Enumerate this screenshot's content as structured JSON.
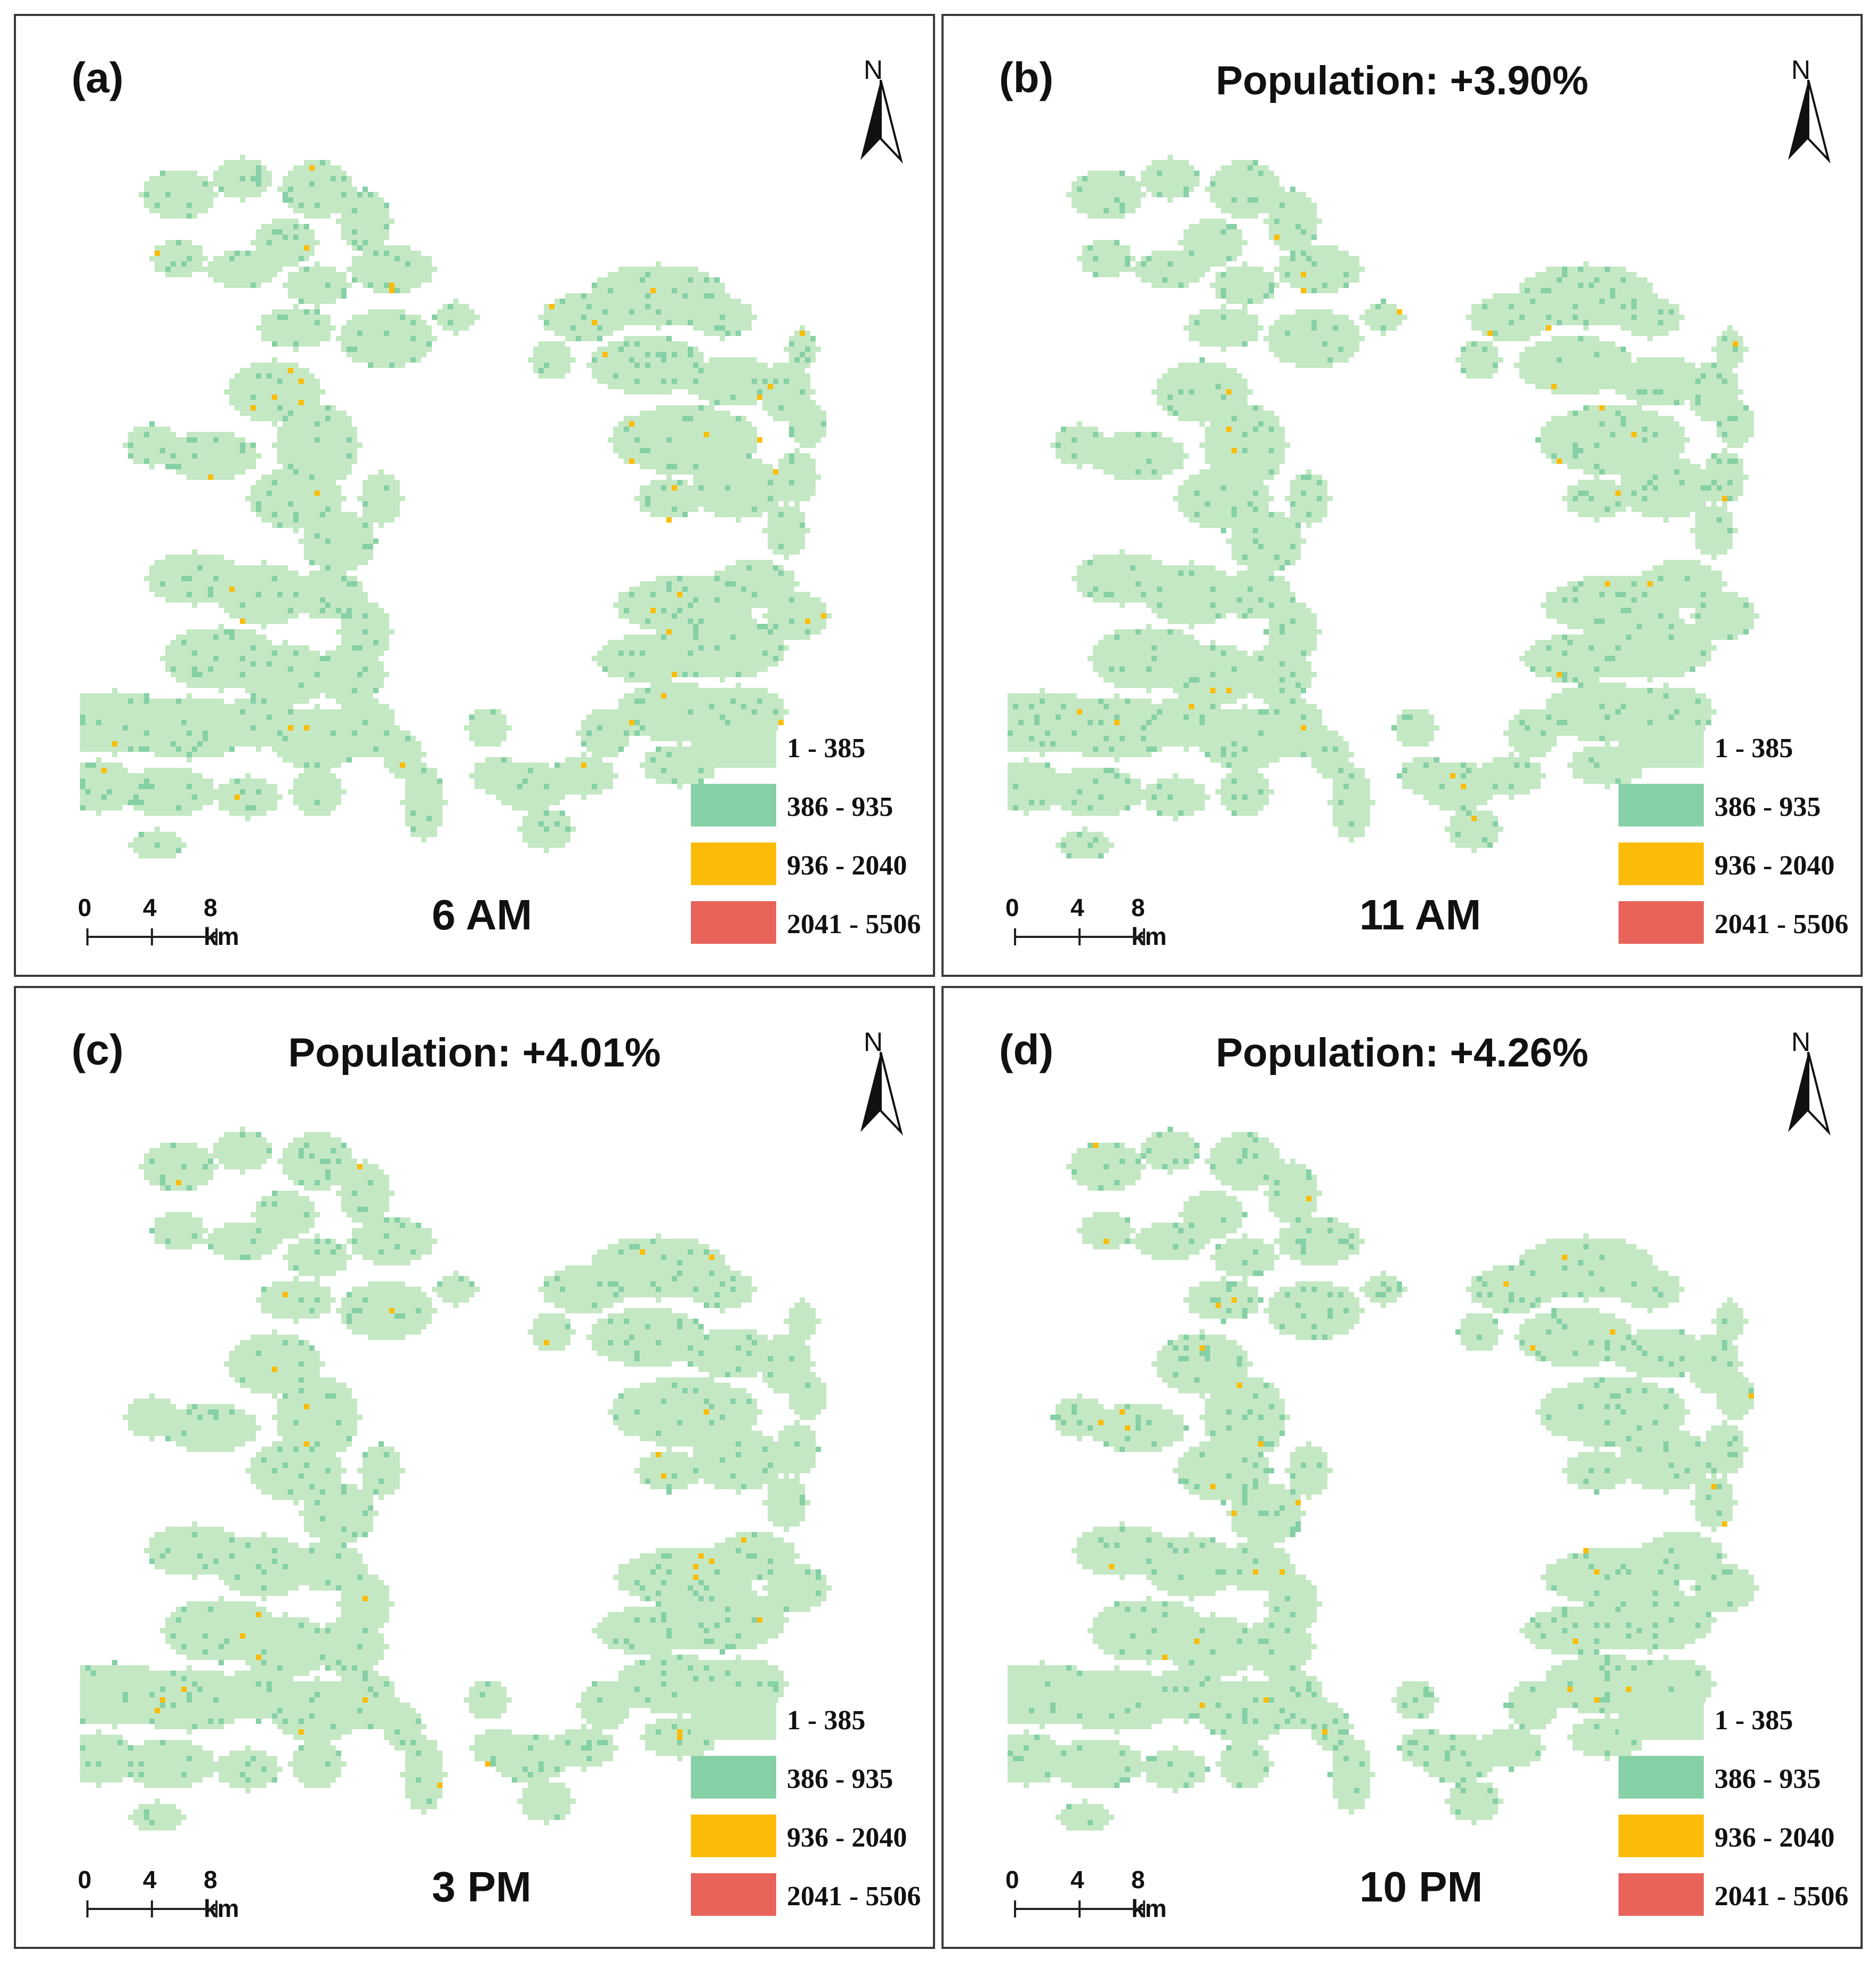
{
  "legend": {
    "classes": [
      {
        "label": "1 - 385",
        "color": "#c5e8c4"
      },
      {
        "label": "386 - 935",
        "color": "#86d0a6"
      },
      {
        "label": "936 - 2040",
        "color": "#fbbc09"
      },
      {
        "label": "2041 - 5506",
        "color": "#e8645a"
      }
    ]
  },
  "scale_bar": {
    "ticks": [
      "0",
      "4",
      "8 km"
    ]
  },
  "north_arrow": {
    "label": "N",
    "icon": "north-arrow-icon"
  },
  "panels": [
    {
      "label": "(a)",
      "population": "",
      "time": "6 AM"
    },
    {
      "label": "(b)",
      "population": "Population: +3.90%",
      "time": "11 AM"
    },
    {
      "label": "(c)",
      "population": "Population: +4.01%",
      "time": "3 PM"
    },
    {
      "label": "(d)",
      "population": "Population: +4.26%",
      "time": "10 PM"
    }
  ]
}
